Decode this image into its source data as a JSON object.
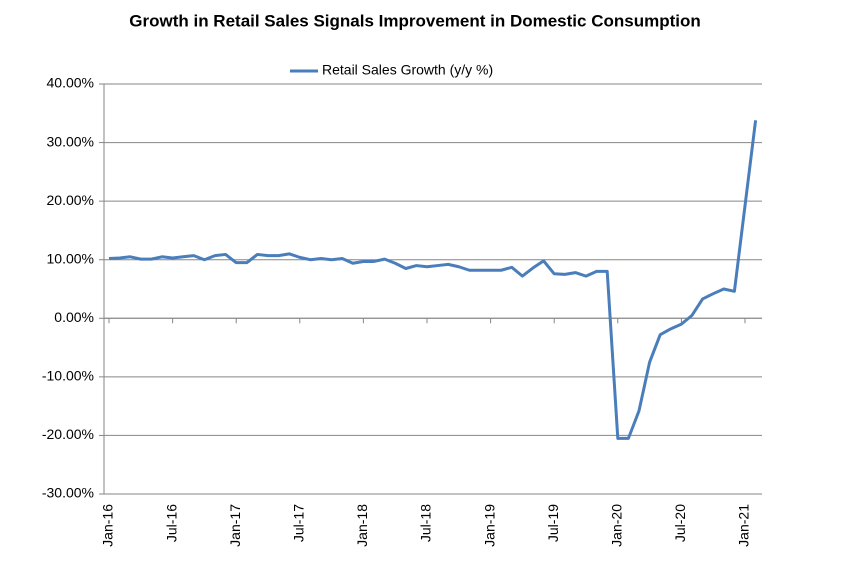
{
  "chart_data": {
    "type": "line",
    "title": "Growth in Retail Sales Signals Improvement in Domestic Consumption",
    "categories": [
      "Jan-16",
      null,
      null,
      null,
      null,
      null,
      "Jul-16",
      null,
      null,
      null,
      null,
      null,
      "Jan-17",
      null,
      null,
      null,
      null,
      null,
      "Jul-17",
      null,
      null,
      null,
      null,
      null,
      "Jan-18",
      null,
      null,
      null,
      null,
      null,
      "Jul-18",
      null,
      null,
      null,
      null,
      null,
      "Jan-19",
      null,
      null,
      null,
      null,
      null,
      "Jul-19",
      null,
      null,
      null,
      null,
      null,
      "Jan-20",
      null,
      null,
      null,
      null,
      null,
      "Jul-20",
      null,
      null,
      null,
      null,
      null,
      "Jan-21",
      null
    ],
    "series": [
      {
        "name": "Retail Sales Growth (y/y %)",
        "color": "#4a7ebb",
        "values": [
          10.2,
          10.3,
          10.5,
          10.1,
          10.1,
          10.5,
          10.3,
          10.5,
          10.7,
          10.0,
          10.7,
          10.9,
          9.5,
          9.5,
          10.9,
          10.7,
          10.7,
          11.0,
          10.4,
          10.0,
          10.2,
          10.0,
          10.2,
          9.4,
          9.7,
          9.7,
          10.1,
          9.4,
          8.5,
          9.0,
          8.8,
          9.0,
          9.2,
          8.8,
          8.2,
          8.2,
          8.2,
          8.2,
          8.7,
          7.2,
          8.6,
          9.8,
          7.6,
          7.5,
          7.8,
          7.2,
          8.0,
          8.0,
          -20.5,
          -20.5,
          -15.8,
          -7.5,
          -2.8,
          -1.8,
          -1.0,
          0.5,
          3.3,
          4.2,
          5.0,
          4.6,
          19.2,
          33.8
        ]
      }
    ],
    "ylim": [
      -30,
      40
    ],
    "yticks": [
      {
        "value": -30,
        "label": "-30.00%"
      },
      {
        "value": -20,
        "label": "-20.00%"
      },
      {
        "value": -10,
        "label": "-10.00%"
      },
      {
        "value": 0,
        "label": "0.00%"
      },
      {
        "value": 10,
        "label": "10.00%"
      },
      {
        "value": 20,
        "label": "20.00%"
      },
      {
        "value": 30,
        "label": "30.00%"
      },
      {
        "value": 40,
        "label": "40.00%"
      }
    ],
    "grid": true,
    "legend": "top"
  }
}
